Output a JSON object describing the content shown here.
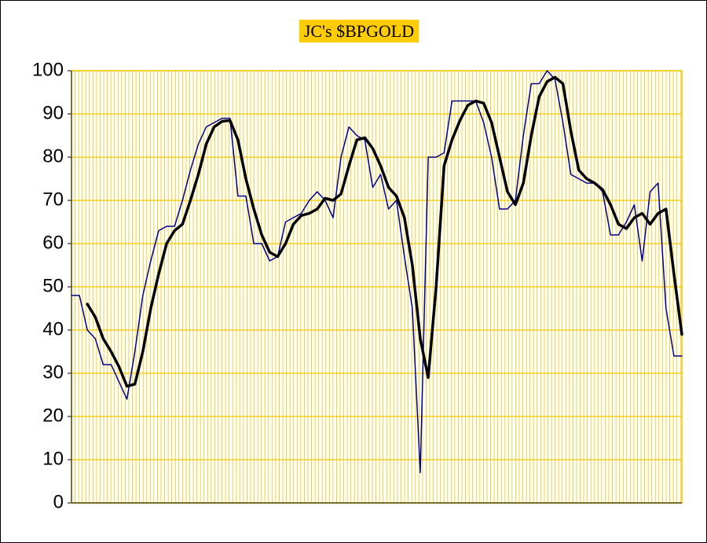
{
  "chart_data": {
    "type": "line",
    "title": "JC's $BPGOLD",
    "ylim": [
      0,
      100
    ],
    "yticks": [
      0,
      10,
      20,
      30,
      40,
      50,
      60,
      70,
      80,
      90,
      100
    ],
    "grid": true,
    "series": [
      {
        "color": "#00008b",
        "values": [
          48,
          48,
          40,
          38,
          32,
          32,
          28,
          24,
          35,
          48,
          56,
          63,
          64,
          64,
          70,
          77,
          83,
          87,
          88,
          89,
          89,
          71,
          71,
          60,
          60,
          56,
          57,
          65,
          66,
          67,
          70,
          72,
          70,
          66,
          80,
          87,
          85,
          84,
          73,
          76,
          68,
          70,
          57,
          45,
          7,
          80,
          80,
          81,
          93,
          93,
          93,
          93,
          88,
          80,
          68,
          68,
          70,
          85,
          97,
          97,
          100,
          98,
          88,
          76,
          75,
          74,
          74,
          72,
          62,
          62,
          65,
          69,
          56,
          72,
          74,
          45,
          34,
          34
        ]
      },
      {
        "color": "#000000",
        "values": [
          null,
          null,
          46,
          43,
          38,
          35,
          31.5,
          27,
          27.5,
          35,
          45,
          53,
          60,
          63,
          64.5,
          70,
          76,
          83,
          87,
          88.3,
          88.5,
          84,
          75,
          68,
          62,
          58,
          57,
          60,
          64.5,
          66.5,
          67,
          68,
          70.5,
          70,
          71.5,
          78,
          84,
          84.5,
          82,
          78,
          73,
          71,
          66,
          55,
          38,
          29,
          50,
          78,
          84,
          88.5,
          92,
          93,
          92.5,
          88,
          80,
          72,
          69,
          74,
          85,
          94,
          97.5,
          98.5,
          97,
          86,
          77,
          75,
          74,
          72.5,
          69,
          64.5,
          63.5,
          66,
          67,
          64.5,
          67,
          68,
          53,
          39
        ]
      }
    ]
  }
}
